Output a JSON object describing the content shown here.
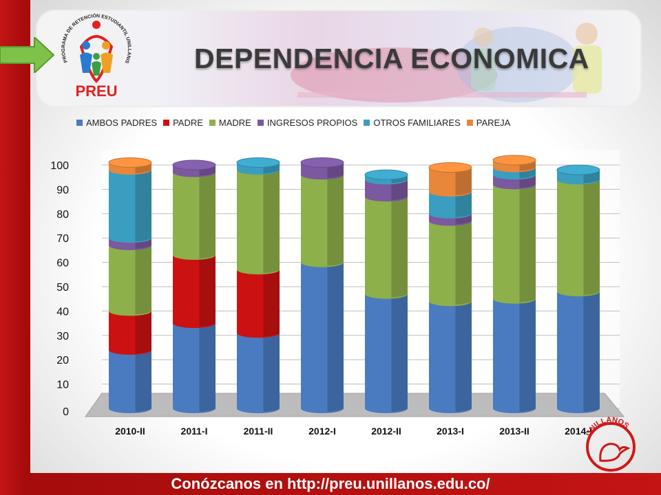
{
  "header": {
    "title": "DEPENDENCIA ECONOMICA",
    "logo_text": "PREU",
    "logo_ring_text": "PROGRAMA DE RETENCIÓN ESTUDIANTIL UNILLANISTA"
  },
  "footer": {
    "text": "Conózcanos en http://preu.unillanos.edu.co/"
  },
  "university_seal": {
    "text": "UNILLANOS"
  },
  "colors": {
    "frame": "#c41414",
    "ambos": "#4a7bc0",
    "padre": "#cc1111",
    "madre": "#8db04a",
    "ingresos": "#7b58a0",
    "otros": "#3a9ec0",
    "pareja": "#e8873a"
  },
  "chart_data": {
    "type": "bar",
    "stacked": true,
    "three_d": true,
    "categories": [
      "2010-II",
      "2011-I",
      "2011-II",
      "2012-I",
      "2012-II",
      "2013-I",
      "2013-II",
      "2014-I"
    ],
    "ylim": [
      0,
      100
    ],
    "yticks": [
      0,
      10,
      20,
      30,
      40,
      50,
      60,
      70,
      80,
      90,
      100
    ],
    "grid": true,
    "legend_position": "top",
    "series": [
      {
        "name": "AMBOS PADRES",
        "color": "#4a7bc0",
        "values": [
          24,
          35,
          31,
          60,
          47,
          44,
          45,
          48
        ]
      },
      {
        "name": "PADRE",
        "color": "#cc1111",
        "values": [
          16,
          28,
          26,
          0,
          0,
          0,
          0,
          0
        ]
      },
      {
        "name": "MADRE",
        "color": "#8db04a",
        "values": [
          27,
          34,
          41,
          36,
          40,
          33,
          47,
          46
        ]
      },
      {
        "name": "INGRESOS PROPIOS",
        "color": "#7b58a0",
        "values": [
          3,
          3,
          0,
          5,
          7,
          3,
          4,
          0
        ]
      },
      {
        "name": "OTROS FAMILIARES",
        "color": "#3a9ec0",
        "values": [
          28,
          0,
          3,
          0,
          2,
          9,
          3,
          4
        ]
      },
      {
        "name": "PAREJA",
        "color": "#e8873a",
        "values": [
          3,
          0,
          0,
          0,
          0,
          10,
          3,
          0
        ]
      }
    ]
  }
}
